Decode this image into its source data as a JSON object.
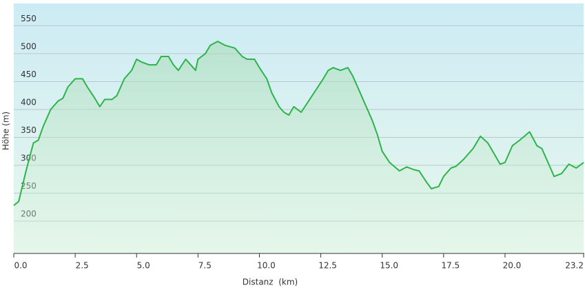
{
  "chart_data": {
    "type": "line",
    "x_label": "Distanz  (km)",
    "y_label": "Höhe (m)",
    "x": [
      0,
      0.2,
      0.5,
      0.8,
      1.0,
      1.2,
      1.5,
      1.8,
      2.0,
      2.2,
      2.5,
      2.8,
      3.0,
      3.3,
      3.5,
      3.7,
      4.0,
      4.2,
      4.5,
      4.8,
      5.0,
      5.2,
      5.5,
      5.8,
      6.0,
      6.3,
      6.5,
      6.7,
      7.0,
      7.2,
      7.4,
      7.5,
      7.8,
      8.0,
      8.3,
      8.6,
      9.0,
      9.3,
      9.5,
      9.8,
      10.0,
      10.3,
      10.5,
      10.8,
      11.0,
      11.2,
      11.4,
      11.7,
      12.0,
      12.3,
      12.6,
      12.8,
      13.0,
      13.3,
      13.6,
      13.8,
      14.0,
      14.3,
      14.6,
      14.8,
      15.0,
      15.3,
      15.7,
      16.0,
      16.3,
      16.5,
      16.8,
      17.0,
      17.3,
      17.5,
      17.8,
      18.0,
      18.3,
      18.7,
      19.0,
      19.3,
      19.5,
      19.8,
      20.0,
      20.3,
      20.6,
      21.0,
      21.3,
      21.5,
      21.8,
      22.0,
      22.3,
      22.6,
      22.9,
      23.2
    ],
    "series": [
      {
        "color": "#2db34a",
        "values": [
          228,
          235,
          290,
          340,
          345,
          370,
          400,
          415,
          420,
          440,
          455,
          455,
          440,
          420,
          405,
          418,
          418,
          425,
          455,
          470,
          490,
          485,
          480,
          480,
          495,
          495,
          480,
          470,
          490,
          480,
          470,
          490,
          500,
          515,
          522,
          515,
          510,
          495,
          490,
          490,
          475,
          455,
          430,
          405,
          395,
          390,
          405,
          395,
          415,
          435,
          455,
          470,
          475,
          470,
          475,
          460,
          440,
          410,
          380,
          355,
          325,
          305,
          290,
          297,
          292,
          290,
          270,
          258,
          262,
          280,
          295,
          298,
          310,
          330,
          352,
          340,
          325,
          302,
          305,
          335,
          345,
          360,
          335,
          330,
          300,
          280,
          285,
          302,
          295,
          305
        ]
      }
    ],
    "xlim": [
      0,
      23.2
    ],
    "ylim": [
      142,
      590
    ],
    "xticks": [
      {
        "value": 0,
        "label": "0.0"
      },
      2.5,
      {
        "value": 5,
        "label": "5.0"
      },
      7.5,
      {
        "value": 10,
        "label": "10.0"
      },
      12.5,
      {
        "value": 15,
        "label": "15.0"
      },
      17.5,
      {
        "value": 20,
        "label": "20.0"
      },
      23.2
    ],
    "yticks": [
      200,
      250,
      300,
      350,
      400,
      450,
      500,
      550
    ],
    "grid": true
  }
}
